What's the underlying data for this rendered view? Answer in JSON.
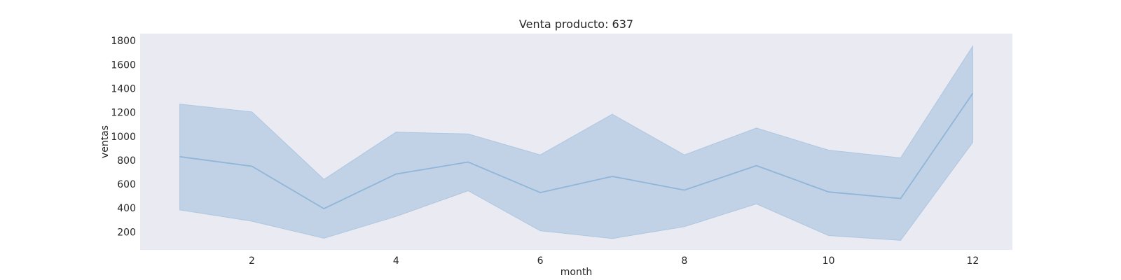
{
  "chart_data": {
    "type": "area",
    "title": "Venta producto: 637",
    "xlabel": "month",
    "ylabel": "ventas",
    "xlim": [
      0.45,
      12.55
    ],
    "ylim": [
      50,
      1860
    ],
    "x_ticks": [
      2,
      4,
      6,
      8,
      10,
      12
    ],
    "y_ticks": [
      200,
      400,
      600,
      800,
      1000,
      1200,
      1400,
      1600,
      1800
    ],
    "grid": false,
    "background_color": "#eaeaf2",
    "line_color": "#8fb6d8",
    "band_color": "#a9c4df",
    "x": [
      1,
      2,
      3,
      4,
      5,
      6,
      7,
      8,
      9,
      10,
      11,
      12
    ],
    "series": [
      {
        "values": [
          830,
          750,
          395,
          685,
          785,
          530,
          665,
          550,
          755,
          535,
          480,
          1360
        ],
        "lower": [
          385,
          290,
          148,
          330,
          545,
          210,
          145,
          245,
          435,
          170,
          130,
          950
        ],
        "upper": [
          1270,
          1205,
          640,
          1035,
          1020,
          845,
          1185,
          845,
          1070,
          885,
          820,
          1755
        ]
      }
    ]
  }
}
